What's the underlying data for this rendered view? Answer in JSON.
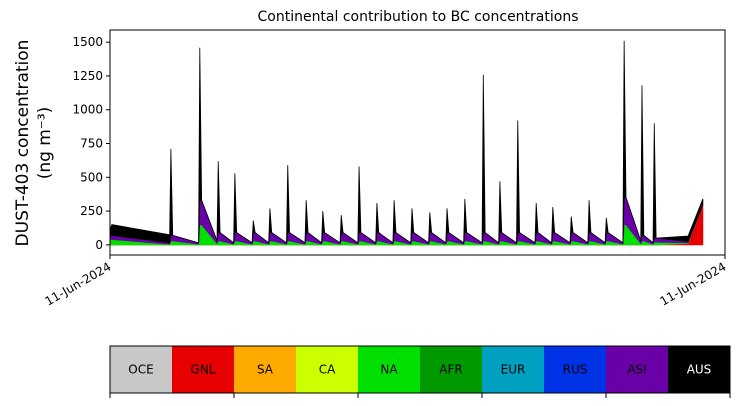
{
  "chart_data": {
    "type": "stacked_area",
    "title": "Continental contribution to BC concentrations",
    "ylabel": [
      "DUST-403 concentration",
      "(ng m⁻³)"
    ],
    "x": [
      0,
      0.3,
      9.7,
      9.9,
      10.2,
      14.4,
      14.6,
      14.9,
      17.4,
      17.6,
      17.9,
      20.1,
      20.3,
      20.6,
      23.1,
      23.3,
      23.6,
      25.8,
      26,
      26.3,
      28.7,
      28.9,
      29.2,
      31.7,
      31.9,
      32.2,
      34.4,
      34.6,
      34.9,
      37.4,
      37.6,
      37.9,
      40.3,
      40.5,
      40.8,
      43.2,
      43.4,
      43.7,
      46,
      46.2,
      46.5,
      48.9,
      49.1,
      49.4,
      51.8,
      52,
      52.3,
      54.6,
      54.8,
      55.1,
      57.5,
      57.7,
      58,
      60.5,
      60.7,
      61,
      63.2,
      63.4,
      63.7,
      66.1,
      66.3,
      66.6,
      69.1,
      69.3,
      69.6,
      71.8,
      72,
      72.3,
      74.8,
      75,
      75.3,
      77.7,
      77.9,
      78.2,
      80.5,
      80.7,
      81,
      83.4,
      83.6,
      83.9,
      86.3,
      86.5,
      86.8,
      88.3,
      88.5,
      88.8,
      94,
      96.4
    ],
    "series": [
      {
        "name": "GNL",
        "color": "#e60000",
        "values": [
          0,
          0,
          0,
          0,
          0,
          0,
          0,
          0,
          0,
          0,
          0,
          0,
          0,
          0,
          0,
          0,
          0,
          0,
          0,
          0,
          0,
          0,
          0,
          0,
          0,
          0,
          0,
          0,
          0,
          0,
          0,
          0,
          0,
          0,
          0,
          0,
          0,
          0,
          0,
          0,
          0,
          0,
          0,
          0,
          0,
          0,
          0,
          0,
          0,
          0,
          0,
          0,
          0,
          0,
          0,
          0,
          0,
          0,
          0,
          0,
          0,
          0,
          0,
          0,
          0,
          0,
          0,
          0,
          0,
          0,
          0,
          0,
          0,
          0,
          0,
          0,
          0,
          0,
          0,
          0,
          0,
          0,
          0,
          0,
          0,
          0,
          10,
          300
        ]
      },
      {
        "name": "NA",
        "color": "#00e000",
        "values": [
          40,
          40,
          5,
          30,
          30,
          5,
          150,
          150,
          10,
          30,
          30,
          5,
          30,
          30,
          5,
          30,
          30,
          5,
          30,
          30,
          5,
          30,
          30,
          5,
          30,
          30,
          5,
          30,
          30,
          5,
          30,
          30,
          5,
          30,
          30,
          5,
          30,
          30,
          5,
          30,
          30,
          5,
          30,
          30,
          5,
          30,
          30,
          5,
          30,
          30,
          5,
          30,
          30,
          5,
          30,
          30,
          5,
          30,
          30,
          5,
          30,
          30,
          5,
          30,
          30,
          5,
          30,
          30,
          5,
          30,
          30,
          5,
          30,
          30,
          5,
          30,
          30,
          5,
          150,
          150,
          10,
          30,
          30,
          5,
          20,
          20,
          5,
          0
        ]
      },
      {
        "name": "ASI",
        "color": "#6a00a8",
        "values": [
          30,
          30,
          10,
          40,
          40,
          10,
          180,
          180,
          20,
          60,
          60,
          10,
          60,
          60,
          10,
          60,
          60,
          10,
          60,
          60,
          10,
          60,
          60,
          10,
          60,
          60,
          10,
          60,
          60,
          10,
          60,
          60,
          10,
          60,
          60,
          10,
          60,
          60,
          10,
          60,
          60,
          10,
          60,
          60,
          10,
          60,
          60,
          10,
          60,
          60,
          10,
          60,
          60,
          10,
          60,
          60,
          10,
          60,
          60,
          10,
          60,
          60,
          10,
          60,
          60,
          10,
          60,
          60,
          10,
          60,
          60,
          10,
          60,
          60,
          10,
          60,
          60,
          10,
          200,
          200,
          20,
          40,
          40,
          10,
          30,
          30,
          10,
          0
        ]
      },
      {
        "name": "AUS",
        "color": "#000000",
        "values": [
          40,
          80,
          60,
          640,
          0,
          0,
          1130,
          0,
          0,
          530,
          0,
          0,
          440,
          0,
          0,
          90,
          0,
          0,
          180,
          0,
          0,
          500,
          0,
          0,
          240,
          0,
          0,
          160,
          0,
          0,
          130,
          0,
          0,
          490,
          0,
          0,
          220,
          0,
          0,
          240,
          0,
          0,
          180,
          0,
          0,
          150,
          0,
          0,
          180,
          0,
          0,
          250,
          0,
          0,
          1170,
          0,
          0,
          380,
          0,
          0,
          830,
          0,
          0,
          220,
          0,
          0,
          190,
          0,
          0,
          120,
          0,
          0,
          240,
          0,
          0,
          110,
          0,
          0,
          1160,
          0,
          0,
          1110,
          0,
          0,
          850,
          0,
          40,
          40
        ]
      }
    ],
    "xlim": [
      0,
      100
    ],
    "xticks": [
      {
        "value": 0,
        "label": "11-Jun-2024"
      },
      {
        "value": 100,
        "label": "11-Jun-2024"
      }
    ],
    "ylim": [
      -75,
      1590
    ],
    "yticks": [
      0,
      250,
      500,
      750,
      1000,
      1250,
      1500
    ],
    "colorbar": {
      "labels": [
        "OCE",
        "GNL",
        "SA",
        "CA",
        "NA",
        "AFR",
        "EUR",
        "RUS",
        "ASI",
        "AUS"
      ],
      "colors": [
        "#c8c8c8",
        "#e60000",
        "#ffaa00",
        "#ccff00",
        "#00e000",
        "#009900",
        "#00a0c0",
        "#0033e6",
        "#6a00a8",
        "#000000"
      ],
      "text_colors": [
        "#000000",
        "#000000",
        "#000000",
        "#000000",
        "#000000",
        "#000000",
        "#000000",
        "#000000",
        "#000000",
        "#ffffff"
      ]
    }
  }
}
